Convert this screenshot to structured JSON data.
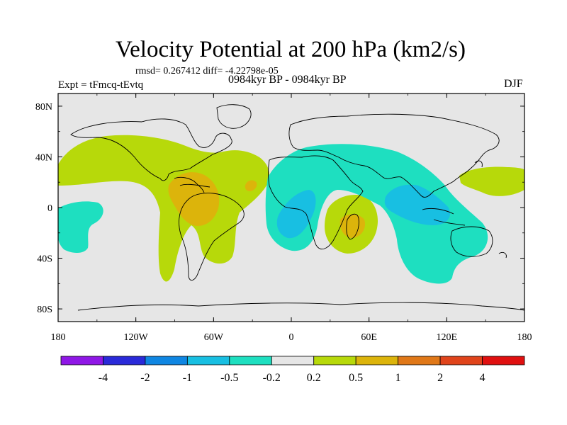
{
  "title": "Velocity Potential at 200 hPa (km2/s)",
  "stats": "rmsd= 0.267412 diff= -4.22798e-05",
  "experiment": "Expt = tFmcq-tEvtq",
  "period": "0984kyr BP - 0984kyr BP",
  "season": "DJF",
  "lat_labels": [
    "80N",
    "40N",
    "0",
    "40S",
    "80S"
  ],
  "lon_labels": [
    "180",
    "120W",
    "60W",
    "0",
    "60E",
    "120E",
    "180"
  ],
  "colorbar": {
    "labels": [
      "-4",
      "-2",
      "-1",
      "-0.5",
      "-0.2",
      "0.2",
      "0.5",
      "1",
      "2",
      "4"
    ],
    "colors": [
      "#8f17e6",
      "#2a2ad9",
      "#0f86e2",
      "#18bfe2",
      "#1edfc0",
      "#e6e6e6",
      "#b7d90a",
      "#dcb40b",
      "#e07818",
      "#e0441b",
      "#e01010"
    ]
  },
  "colors": {
    "ocean": "#e6e6e6",
    "neg_weak": "#1edfc0",
    "neg_mid": "#18bfe2",
    "pos_weak": "#b7d90a",
    "pos_mid": "#dcb40b",
    "pos_strong": "#e07818"
  }
}
